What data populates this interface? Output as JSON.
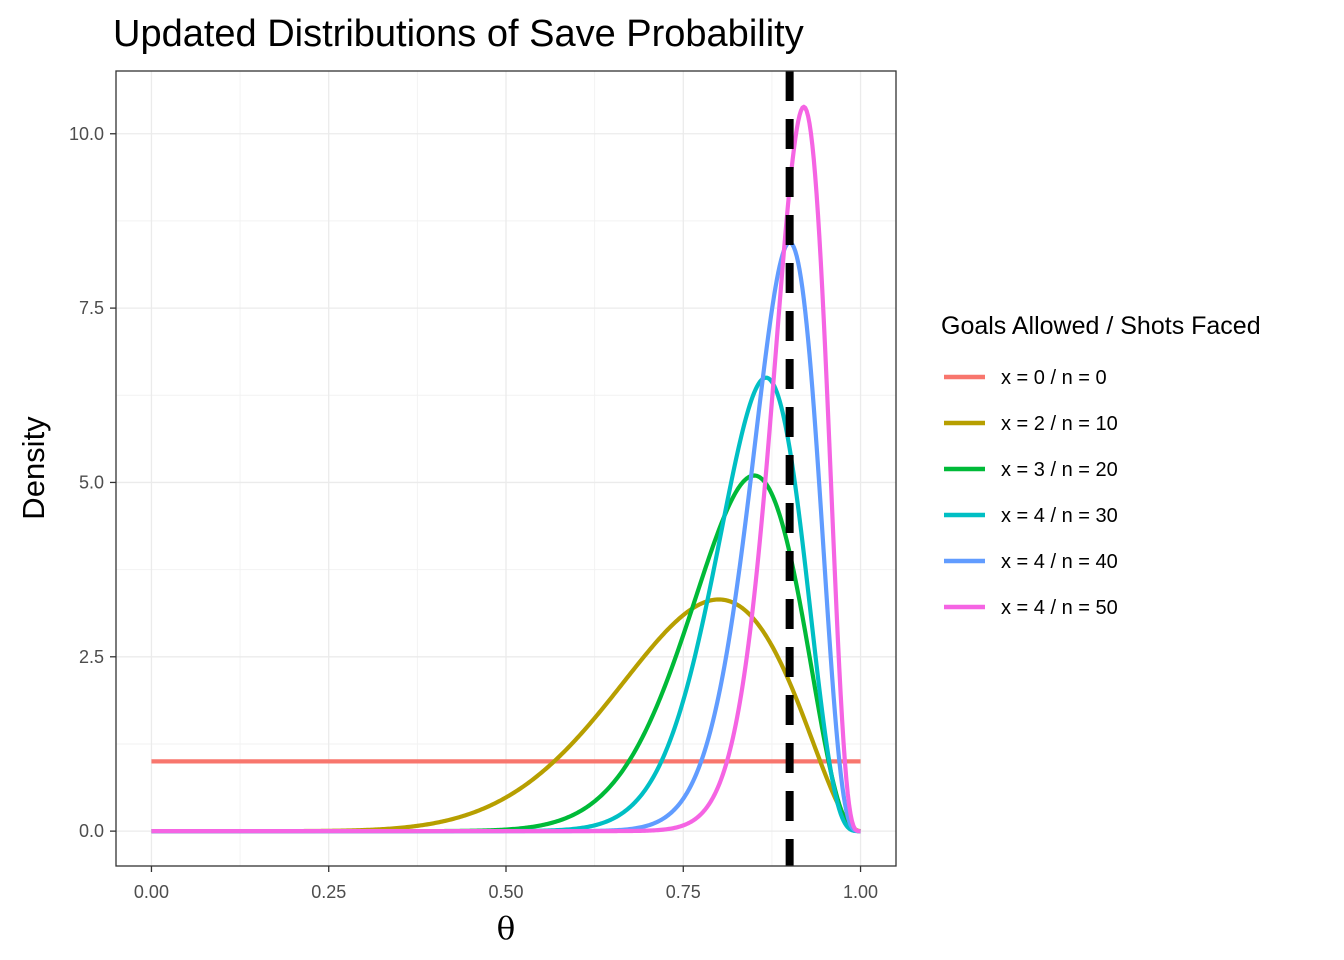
{
  "chart_data": {
    "type": "line",
    "title": "Updated Distributions of Save Probability",
    "xlabel": "θ",
    "ylabel": "Density",
    "xlim": [
      -0.05,
      1.05
    ],
    "ylim": [
      -0.5,
      10.9
    ],
    "x_ticks": [
      0,
      0.25,
      0.5,
      0.75,
      1
    ],
    "x_tick_labels": [
      "0.00",
      "0.25",
      "0.50",
      "0.75",
      "1.00"
    ],
    "y_ticks": [
      0,
      2.5,
      5,
      7.5,
      10
    ],
    "y_tick_labels": [
      "0.0",
      "2.5",
      "5.0",
      "7.5",
      "10.0"
    ],
    "grid": true,
    "legend": {
      "title": "Goals Allowed / Shots Faced",
      "position": "right"
    },
    "reference_line": {
      "type": "vertical",
      "x": 0.9,
      "style": "dashed",
      "color": "#000000"
    },
    "series": [
      {
        "name": "x = 0 / n = 0",
        "color": "#F8766D",
        "alpha": 1,
        "beta": 1
      },
      {
        "name": "x = 2 / n = 10",
        "color": "#B79F00",
        "alpha": 9,
        "beta": 3
      },
      {
        "name": "x = 3 / n = 20",
        "color": "#00BA38",
        "alpha": 18,
        "beta": 4
      },
      {
        "name": "x = 4 / n = 30",
        "color": "#00BFC4",
        "alpha": 27,
        "beta": 5
      },
      {
        "name": "x = 4 / n = 40",
        "color": "#619CFF",
        "alpha": 37,
        "beta": 5
      },
      {
        "name": "x = 4 / n = 50",
        "color": "#F564E3",
        "alpha": 47,
        "beta": 5
      }
    ]
  }
}
